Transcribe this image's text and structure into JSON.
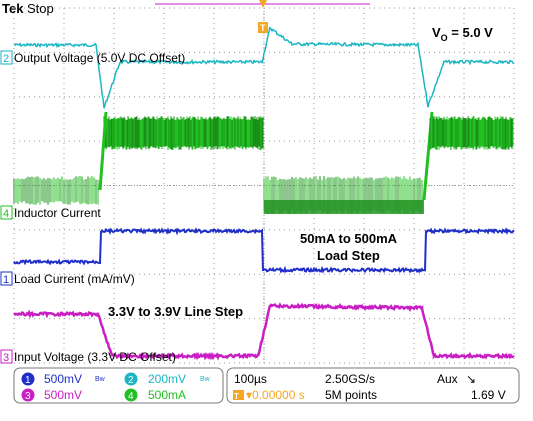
{
  "header": {
    "brand": "Tek",
    "state": "Stop"
  },
  "annotations": {
    "vo_main": "V",
    "vo_sub": "O",
    "vo_value": " = 5.0 V",
    "load_step_line1": "50mA to 500mA",
    "load_step_line2": "Load Step",
    "line_step": "3.3V to 3.9V Line Step"
  },
  "channels": [
    {
      "id": "2",
      "label": "Output Voltage (5.0V DC Offset)",
      "color": "#1ab6c3"
    },
    {
      "id": "4",
      "label": "Inductor Current",
      "color": "#22c022"
    },
    {
      "id": "1",
      "label": "Load Current (mA/mV)",
      "color": "#1f2fc8"
    },
    {
      "id": "3",
      "label": "Input Voltage (3.3V DC Offset)",
      "color": "#c81ec3"
    }
  ],
  "trigger_marker": {
    "label": "T",
    "color": "#f5a623"
  },
  "status_bar": {
    "ch1": {
      "id": "1",
      "value": "500mV",
      "suffix": "Bw"
    },
    "ch2": {
      "id": "2",
      "value": "200mV",
      "suffix": "Bw"
    },
    "ch3": {
      "id": "3",
      "value": "500mV"
    },
    "ch4": {
      "id": "4",
      "value": "500mA"
    },
    "timebase": "100µs",
    "sample_rate": "2.50GS/s",
    "trigger_source": "Aux",
    "trigger_slope": "↘",
    "trigger_delay": "▾0.00000 s",
    "record_length": "5M points",
    "trigger_level": "1.69 V"
  }
}
